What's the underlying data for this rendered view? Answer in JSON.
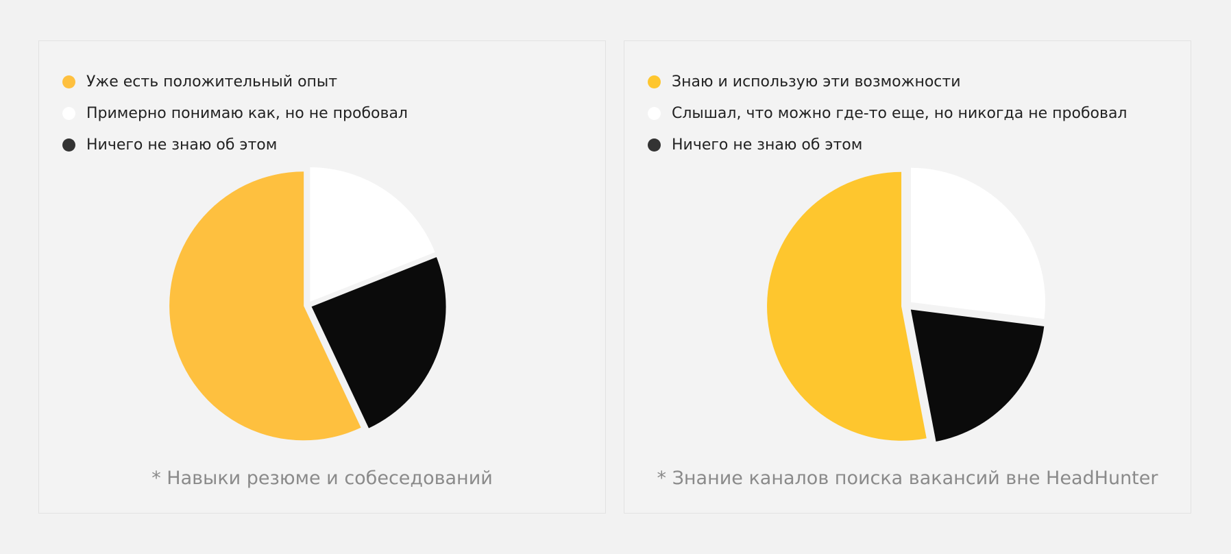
{
  "colors": {
    "yellow": "#fec03f",
    "white": "#ffffff",
    "black": "#0b0b0b"
  },
  "chart_data": [
    {
      "type": "pie",
      "caption": "* Навыки резюме и собеседований",
      "slices": [
        {
          "label": "Уже есть положительный опыт",
          "value": 57,
          "color": "#fec03f",
          "legend_color": "#fec03f"
        },
        {
          "label": "Примерно понимаю как, но не пробовал",
          "value": 19,
          "color": "#ffffff",
          "legend_color": "#ffffff"
        },
        {
          "label": "Ничего не знаю об этом",
          "value": 24,
          "color": "#0b0b0b",
          "legend_color": "#333333"
        }
      ],
      "legend_position": "top-left"
    },
    {
      "type": "pie",
      "caption": "* Знание каналов поиска вакансий вне HeadHunter",
      "slices": [
        {
          "label": "Знаю и использую эти возможности",
          "value": 53,
          "color": "#fec62e",
          "legend_color": "#fec62e"
        },
        {
          "label": "Слышал, что можно где-то еще, но никогда не пробовал",
          "value": 27,
          "color": "#ffffff",
          "legend_color": "#ffffff"
        },
        {
          "label": "Ничего не знаю об этом",
          "value": 20,
          "color": "#0b0b0b",
          "legend_color": "#333333"
        }
      ],
      "legend_position": "top-left"
    }
  ]
}
